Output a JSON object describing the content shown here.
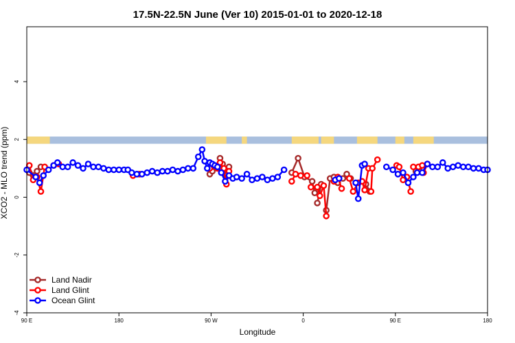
{
  "chart_data": {
    "type": "line",
    "title": "17.5N-22.5N June (Ver 10)   2015-01-01 to 2020-12-18",
    "xlabel": "Longitude",
    "ylabel": "XCO2 - MLO trend (ppm)",
    "xlim": [
      -90,
      270
    ],
    "ylim": [
      -4,
      5.9
    ],
    "xticks": [
      {
        "value": -90,
        "label": "90 E"
      },
      {
        "value": -18,
        "label": "180"
      },
      {
        "value": 54,
        "label": "90 W"
      },
      {
        "value": 126,
        "label": "0"
      },
      {
        "value": 198,
        "label": "90 E"
      },
      {
        "value": 270,
        "label": "180"
      }
    ],
    "yticks": [
      {
        "value": -4,
        "label": "-4"
      },
      {
        "value": -2,
        "label": "-2"
      },
      {
        "value": 0,
        "label": "0"
      },
      {
        "value": 2,
        "label": "2"
      },
      {
        "value": 4,
        "label": "4"
      }
    ],
    "land_band": {
      "y_range": [
        1.85,
        2.1
      ],
      "ocean_color": "#a9bfde",
      "land_color": "#f5d77e",
      "land_segments": [
        [
          -90,
          -72
        ],
        [
          50,
          66
        ],
        [
          78,
          82
        ],
        [
          117,
          138
        ],
        [
          140,
          150
        ],
        [
          168,
          184
        ],
        [
          198,
          205
        ],
        [
          212,
          228
        ]
      ]
    },
    "legend_position": "bottom-left",
    "series": [
      {
        "name": "Land Nadir",
        "color": "#a52a2a",
        "segments": [
          {
            "x": [
              -88,
              -85,
              -82,
              -79
            ],
            "y": [
              0.85,
              0.75,
              0.9,
              1.05
            ]
          },
          {
            "x": [
              53,
              55,
              58,
              61,
              63,
              66,
              68
            ],
            "y": [
              0.8,
              0.9,
              1.05,
              1.35,
              1.15,
              0.75,
              1.05
            ]
          },
          {
            "x": [
              117,
              122,
              127,
              133,
              135
            ],
            "y": [
              0.85,
              1.35,
              0.7,
              0.55,
              0.15
            ]
          },
          {
            "x": [
              137,
              140
            ],
            "y": [
              -0.2,
              0.45
            ]
          },
          {
            "x": [
              144,
              147,
              150,
              153,
              157,
              160,
              163
            ],
            "y": [
              -0.45,
              0.65,
              0.7,
              0.5,
              0.65,
              0.8,
              0.65
            ]
          },
          {
            "x": [
              175,
              178
            ],
            "y": [
              0.45,
              0.2
            ]
          },
          {
            "x": [
              214,
              217
            ],
            "y": [
              0.9,
              1.05
            ]
          }
        ]
      },
      {
        "name": "Land Glint",
        "color": "#ff0000",
        "segments": [
          {
            "x": [
              -88,
              -85,
              -82,
              -79,
              -76
            ],
            "y": [
              1.1,
              0.6,
              0.7,
              0.2,
              1.05
            ]
          },
          {
            "x": [
              -69,
              -65
            ],
            "y": [
              1.1,
              1.15
            ]
          },
          {
            "x": [
              -7,
              -2
            ],
            "y": [
              0.75,
              0.8
            ]
          },
          {
            "x": [
              53,
              56,
              59,
              61,
              64,
              66,
              68
            ],
            "y": [
              1.0,
              1.1,
              1.0,
              1.2,
              1.0,
              0.45,
              0.9
            ]
          },
          {
            "x": [
              117,
              120,
              124,
              129
            ],
            "y": [
              0.55,
              0.8,
              0.75,
              0.75
            ]
          },
          {
            "x": [
              132,
              137,
              139,
              142,
              144
            ],
            "y": [
              0.35,
              0.35,
              0.05,
              0.4,
              -0.65
            ]
          },
          {
            "x": [
              150,
              153,
              156
            ],
            "y": [
              0.55,
              0.7,
              0.3
            ]
          },
          {
            "x": [
              162,
              165,
              169,
              172,
              174,
              177
            ],
            "y": [
              0.65,
              0.2,
              0.5,
              0.55,
              0.25,
              1.0
            ]
          },
          {
            "x": [
              179,
              180,
              184
            ],
            "y": [
              0.2,
              1.0,
              1.3
            ]
          },
          {
            "x": [
              199,
              201,
              204,
              207,
              210
            ],
            "y": [
              1.1,
              1.05,
              0.6,
              0.7,
              0.2
            ]
          },
          {
            "x": [
              212,
              216,
              219
            ],
            "y": [
              1.05,
              1.05,
              1.1
            ]
          },
          {
            "x": [
              220,
              223
            ],
            "y": [
              0.85,
              1.15
            ]
          }
        ]
      },
      {
        "name": "Ocean Glint",
        "color": "#0000ff",
        "segments": [
          {
            "x": [
              -90,
              -83,
              -80,
              -77,
              -73,
              -69,
              -66,
              -62,
              -58,
              -54,
              -50,
              -46,
              -42,
              -38,
              -34,
              -30,
              -26,
              -22,
              -18,
              -14,
              -11,
              -8,
              -4,
              0,
              4,
              8,
              12,
              16,
              20,
              24,
              28,
              32,
              36,
              40,
              44,
              47,
              49,
              51,
              53,
              55,
              57,
              59,
              62,
              65,
              68,
              71,
              74,
              78,
              82,
              86,
              90,
              94,
              98,
              102,
              106,
              111
            ],
            "y": [
              0.95,
              0.7,
              0.5,
              0.75,
              0.95,
              1.1,
              1.2,
              1.05,
              1.05,
              1.2,
              1.1,
              1.0,
              1.15,
              1.05,
              1.05,
              1.0,
              0.95,
              0.95,
              0.95,
              0.95,
              0.95,
              0.85,
              0.8,
              0.8,
              0.85,
              0.9,
              0.85,
              0.9,
              0.9,
              0.95,
              0.9,
              0.95,
              1.0,
              1.0,
              1.4,
              1.65,
              1.25,
              1.0,
              1.2,
              1.15,
              1.1,
              1.05,
              0.85,
              0.55,
              0.75,
              0.65,
              0.7,
              0.65,
              0.8,
              0.6,
              0.65,
              0.7,
              0.6,
              0.65,
              0.7,
              0.95
            ]
          },
          {
            "x": [
              151,
              154
            ],
            "y": [
              0.6,
              0.65
            ]
          },
          {
            "x": [
              167,
              169,
              172,
              174
            ],
            "y": [
              0.5,
              -0.05,
              1.1,
              1.15
            ]
          },
          {
            "x": [
              191,
              196,
              200,
              204,
              208,
              212,
              215,
              219,
              223,
              227,
              231,
              235,
              239,
              243,
              247,
              251,
              255,
              259,
              263,
              267,
              270
            ],
            "y": [
              1.05,
              0.95,
              0.8,
              0.85,
              0.5,
              0.7,
              0.85,
              0.85,
              1.15,
              1.05,
              1.05,
              1.2,
              1.0,
              1.05,
              1.1,
              1.05,
              1.05,
              1.0,
              1.0,
              0.95,
              0.95
            ]
          }
        ]
      }
    ]
  }
}
